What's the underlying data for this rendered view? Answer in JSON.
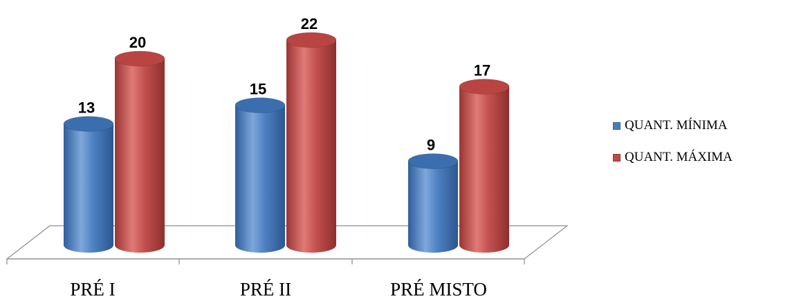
{
  "chart_data": {
    "type": "bar",
    "categories": [
      "PRÉ I",
      "PRÉ II",
      "PRÉ MISTO"
    ],
    "series": [
      {
        "name": "QUANT. MÍNIMA",
        "values": [
          13,
          15,
          9
        ],
        "color": "#4a7ebb"
      },
      {
        "name": "QUANT. MÁXIMA",
        "values": [
          20,
          22,
          17
        ],
        "color": "#be4b48"
      }
    ],
    "title": "",
    "xlabel": "",
    "ylabel": "",
    "ylim": [
      0,
      22
    ],
    "grid": false,
    "legend_position": "right",
    "style": "3d-cylinder"
  }
}
